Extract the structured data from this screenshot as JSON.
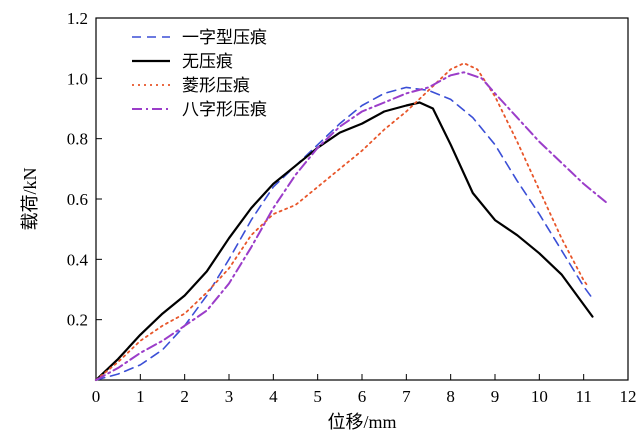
{
  "chart_data": {
    "type": "line",
    "xlabel": "位移/mm",
    "ylabel": "载荷/kN",
    "xlim": [
      0,
      12
    ],
    "ylim": [
      0,
      1.2
    ],
    "xticks": [
      "0",
      "1",
      "2",
      "3",
      "4",
      "5",
      "6",
      "7",
      "8",
      "9",
      "10",
      "11",
      "12"
    ],
    "yticks": [
      "0.2",
      "0.4",
      "0.6",
      "0.8",
      "1.0",
      "1.2"
    ],
    "grid": false,
    "legend_position": "top-left",
    "series": [
      {
        "name": "一字型压痕",
        "color": "#3b4fd6",
        "dash": "dashed",
        "points": [
          [
            0,
            0.0
          ],
          [
            0.5,
            0.02
          ],
          [
            1,
            0.05
          ],
          [
            1.5,
            0.1
          ],
          [
            2,
            0.18
          ],
          [
            2.5,
            0.28
          ],
          [
            3,
            0.4
          ],
          [
            3.5,
            0.53
          ],
          [
            4,
            0.64
          ],
          [
            4.5,
            0.71
          ],
          [
            5,
            0.78
          ],
          [
            5.5,
            0.85
          ],
          [
            6,
            0.91
          ],
          [
            6.5,
            0.95
          ],
          [
            7,
            0.97
          ],
          [
            7.5,
            0.96
          ],
          [
            8,
            0.93
          ],
          [
            8.5,
            0.87
          ],
          [
            9,
            0.78
          ],
          [
            9.5,
            0.66
          ],
          [
            10,
            0.55
          ],
          [
            10.5,
            0.43
          ],
          [
            11,
            0.31
          ],
          [
            11.2,
            0.27
          ]
        ]
      },
      {
        "name": "无压痕",
        "color": "#000000",
        "dash": "solid",
        "points": [
          [
            0,
            0.0
          ],
          [
            0.5,
            0.07
          ],
          [
            1,
            0.15
          ],
          [
            1.5,
            0.22
          ],
          [
            2,
            0.28
          ],
          [
            2.5,
            0.36
          ],
          [
            3,
            0.47
          ],
          [
            3.5,
            0.57
          ],
          [
            4,
            0.65
          ],
          [
            4.5,
            0.71
          ],
          [
            5,
            0.77
          ],
          [
            5.5,
            0.82
          ],
          [
            6,
            0.85
          ],
          [
            6.5,
            0.89
          ],
          [
            7,
            0.91
          ],
          [
            7.3,
            0.92
          ],
          [
            7.6,
            0.9
          ],
          [
            8,
            0.78
          ],
          [
            8.5,
            0.62
          ],
          [
            9,
            0.53
          ],
          [
            9.5,
            0.48
          ],
          [
            10,
            0.42
          ],
          [
            10.5,
            0.35
          ],
          [
            11,
            0.25
          ],
          [
            11.2,
            0.21
          ]
        ]
      },
      {
        "name": "菱形压痕",
        "color": "#e8562a",
        "dash": "dotted",
        "points": [
          [
            0,
            0.0
          ],
          [
            0.5,
            0.06
          ],
          [
            1,
            0.13
          ],
          [
            1.5,
            0.18
          ],
          [
            2,
            0.22
          ],
          [
            2.5,
            0.29
          ],
          [
            3,
            0.37
          ],
          [
            3.5,
            0.48
          ],
          [
            4,
            0.55
          ],
          [
            4.5,
            0.58
          ],
          [
            5,
            0.64
          ],
          [
            5.5,
            0.7
          ],
          [
            6,
            0.76
          ],
          [
            6.5,
            0.83
          ],
          [
            7,
            0.89
          ],
          [
            7.5,
            0.96
          ],
          [
            8,
            1.03
          ],
          [
            8.3,
            1.05
          ],
          [
            8.6,
            1.03
          ],
          [
            9,
            0.94
          ],
          [
            9.5,
            0.79
          ],
          [
            10,
            0.63
          ],
          [
            10.5,
            0.47
          ],
          [
            11,
            0.33
          ],
          [
            11.1,
            0.31
          ]
        ]
      },
      {
        "name": "八字形压痕",
        "color": "#9b3dc9",
        "dash": "dashdot",
        "points": [
          [
            0,
            0.0
          ],
          [
            0.5,
            0.04
          ],
          [
            1,
            0.09
          ],
          [
            1.5,
            0.13
          ],
          [
            2,
            0.18
          ],
          [
            2.5,
            0.23
          ],
          [
            3,
            0.32
          ],
          [
            3.5,
            0.44
          ],
          [
            4,
            0.57
          ],
          [
            4.5,
            0.68
          ],
          [
            5,
            0.77
          ],
          [
            5.5,
            0.84
          ],
          [
            6,
            0.89
          ],
          [
            6.5,
            0.92
          ],
          [
            7,
            0.95
          ],
          [
            7.5,
            0.97
          ],
          [
            8,
            1.01
          ],
          [
            8.3,
            1.02
          ],
          [
            8.7,
            1.0
          ],
          [
            9,
            0.95
          ],
          [
            9.5,
            0.87
          ],
          [
            10,
            0.79
          ],
          [
            10.5,
            0.72
          ],
          [
            11,
            0.65
          ],
          [
            11.5,
            0.59
          ]
        ]
      }
    ]
  }
}
